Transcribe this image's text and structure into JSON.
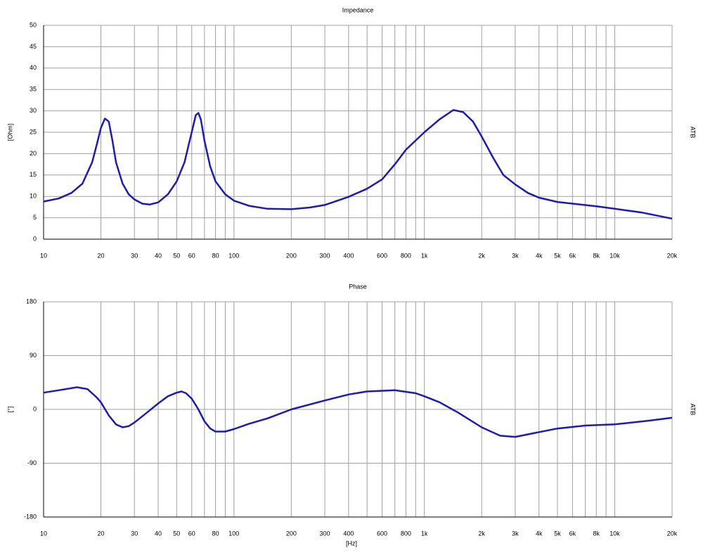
{
  "chart_data": [
    {
      "type": "line",
      "title": "Impedance",
      "ylabel": "[Ohm]",
      "right_label": "ATB",
      "log_x": true,
      "grid": true,
      "color": "#1c1cae",
      "x": [
        10,
        12,
        14,
        16,
        18,
        19,
        20,
        21,
        22,
        23,
        24,
        26,
        28,
        30,
        33,
        36,
        40,
        45,
        50,
        55,
        60,
        63,
        65,
        67,
        70,
        75,
        80,
        90,
        100,
        120,
        150,
        200,
        250,
        300,
        400,
        500,
        600,
        700,
        800,
        1000,
        1200,
        1420,
        1600,
        1800,
        2000,
        2300,
        2600,
        3000,
        3500,
        4000,
        5000,
        6000,
        8000,
        10000,
        14000,
        20000
      ],
      "values": [
        8.8,
        9.5,
        10.8,
        13,
        18,
        22,
        26,
        28.2,
        27.5,
        23,
        18,
        13,
        10.5,
        9.3,
        8.3,
        8.1,
        8.6,
        10.5,
        13.5,
        18,
        25,
        29,
        29.5,
        28,
        23,
        17,
        13.5,
        10.5,
        9,
        7.8,
        7.1,
        7,
        7.4,
        8,
        9.9,
        11.8,
        14,
        17.5,
        20.9,
        25,
        28,
        30.2,
        29.7,
        27.5,
        24,
        19,
        15,
        12.8,
        10.8,
        9.7,
        8.7,
        8.3,
        7.7,
        7.1,
        6.2,
        4.8
      ],
      "xlim": [
        10,
        20000
      ],
      "ylim": [
        0,
        50
      ],
      "yticks": [
        0,
        5,
        10,
        15,
        20,
        25,
        30,
        35,
        40,
        45,
        50
      ],
      "xticks": [
        10,
        20,
        30,
        40,
        50,
        60,
        80,
        100,
        200,
        300,
        400,
        600,
        800,
        {
          "value": 1000,
          "label": "1k"
        },
        {
          "value": 2000,
          "label": "2k"
        },
        {
          "value": 3000,
          "label": "3k"
        },
        {
          "value": 4000,
          "label": "4k"
        },
        {
          "value": 5000,
          "label": "5k"
        },
        {
          "value": 6000,
          "label": "6k"
        },
        {
          "value": 8000,
          "label": "8k"
        },
        {
          "value": 10000,
          "label": "10k"
        },
        {
          "value": 20000,
          "label": "20k"
        }
      ],
      "xgrid_minor": [
        70,
        90,
        500,
        700,
        900,
        7000,
        9000
      ]
    },
    {
      "type": "line",
      "title": "Phase",
      "ylabel": "[°]",
      "right_label": "ATB",
      "xlabel": "[Hz]",
      "log_x": true,
      "grid": true,
      "color": "#1c1cae",
      "x": [
        10,
        12,
        15,
        17,
        19,
        20,
        22,
        24,
        26,
        28,
        30,
        35,
        40,
        45,
        50,
        53,
        56,
        60,
        65,
        70,
        75,
        80,
        90,
        100,
        120,
        150,
        200,
        300,
        400,
        500,
        700,
        900,
        1000,
        1200,
        1500,
        2000,
        2500,
        3000,
        4000,
        5000,
        7000,
        10000,
        15000,
        20000
      ],
      "values": [
        28,
        32,
        37,
        34,
        20,
        12,
        -10,
        -25,
        -30,
        -28,
        -22,
        -5,
        10,
        22,
        28,
        30,
        27,
        18,
        0,
        -20,
        -32,
        -37,
        -37,
        -33,
        -24,
        -15,
        0,
        15,
        25,
        30,
        32,
        27,
        22,
        12,
        -5,
        -30,
        -44,
        -46,
        -38,
        -32,
        -27,
        -25,
        -19,
        -14
      ],
      "xlim": [
        10,
        20000
      ],
      "ylim": [
        -180,
        180
      ],
      "yticks": [
        -180,
        -90,
        0,
        90,
        180
      ],
      "xticks": [
        10,
        20,
        30,
        40,
        50,
        60,
        80,
        100,
        200,
        300,
        400,
        600,
        800,
        {
          "value": 1000,
          "label": "1k"
        },
        {
          "value": 2000,
          "label": "2k"
        },
        {
          "value": 3000,
          "label": "3k"
        },
        {
          "value": 4000,
          "label": "4k"
        },
        {
          "value": 5000,
          "label": "5k"
        },
        {
          "value": 6000,
          "label": "6k"
        },
        {
          "value": 8000,
          "label": "8k"
        },
        {
          "value": 10000,
          "label": "10k"
        },
        {
          "value": 20000,
          "label": "20k"
        }
      ],
      "xgrid_minor": [
        70,
        90,
        500,
        700,
        900,
        7000,
        9000
      ]
    }
  ]
}
